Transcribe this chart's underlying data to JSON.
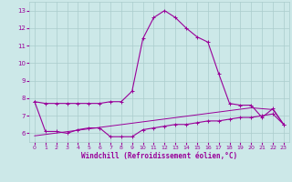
{
  "xlabel": "Windchill (Refroidissement éolien,°C)",
  "x": [
    0,
    1,
    2,
    3,
    4,
    5,
    6,
    7,
    8,
    9,
    10,
    11,
    12,
    13,
    14,
    15,
    16,
    17,
    18,
    19,
    20,
    21,
    22,
    23
  ],
  "temp": [
    7.8,
    7.7,
    7.7,
    7.7,
    7.7,
    7.7,
    7.7,
    7.8,
    7.8,
    8.4,
    11.4,
    12.6,
    13.0,
    12.6,
    12.0,
    11.5,
    11.2,
    9.4,
    7.7,
    7.6,
    7.6,
    6.9,
    7.4,
    6.5
  ],
  "windchill": [
    7.8,
    6.1,
    6.1,
    6.0,
    6.2,
    6.3,
    6.3,
    5.8,
    5.8,
    5.8,
    6.2,
    6.3,
    6.4,
    6.5,
    6.5,
    6.6,
    6.7,
    6.7,
    6.8,
    6.9,
    6.9,
    7.0,
    7.1,
    6.5
  ],
  "trend": [
    5.85,
    5.93,
    6.01,
    6.09,
    6.17,
    6.25,
    6.33,
    6.41,
    6.49,
    6.57,
    6.65,
    6.73,
    6.81,
    6.89,
    6.97,
    7.05,
    7.13,
    7.21,
    7.29,
    7.37,
    7.45,
    7.4,
    7.35,
    6.5
  ],
  "line_color": "#990099",
  "bg_color": "#cce8e8",
  "grid_color": "#aacccc",
  "ylim": [
    5.5,
    13.5
  ],
  "yticks": [
    6,
    7,
    8,
    9,
    10,
    11,
    12,
    13
  ]
}
